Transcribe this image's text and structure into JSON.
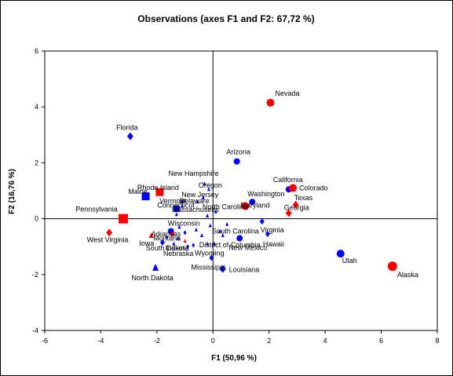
{
  "chart_data": {
    "type": "scatter",
    "title": "Observations (axes F1 and F2: 67,72 %)",
    "xlabel": "F1 (50,96 %)",
    "ylabel": "F2 (16,76 %)",
    "xlim": [
      -6,
      8
    ],
    "ylim": [
      -4,
      6
    ],
    "xticks": [
      "-6",
      "-4",
      "-2",
      "0",
      "2",
      "4",
      "6",
      "8"
    ],
    "yticks": [
      "-4",
      "-2",
      "0",
      "2",
      "4",
      "6"
    ],
    "grid": false,
    "colors": {
      "blue": "#0000ff",
      "red": "#ff0000"
    },
    "points": [
      {
        "label": "Nevada",
        "x": 2.05,
        "y": 4.15,
        "color": "red",
        "shape": "circle",
        "size": 5
      },
      {
        "label": "Florida",
        "x": -2.95,
        "y": 2.95,
        "color": "blue",
        "shape": "diamond",
        "size": 4
      },
      {
        "label": "Arizona",
        "x": 0.85,
        "y": 2.05,
        "color": "blue",
        "shape": "circle",
        "size": 4
      },
      {
        "label": "New Hampshire",
        "x": -0.3,
        "y": 1.25,
        "color": "blue",
        "shape": "triangle",
        "size": 2
      },
      {
        "label": "California",
        "x": 2.7,
        "y": 1.05,
        "color": "blue",
        "shape": "circle",
        "size": 4
      },
      {
        "label": "Colorado",
        "x": 2.85,
        "y": 1.1,
        "color": "red",
        "shape": "circle",
        "size": 5
      },
      {
        "label": "Oregon",
        "x": -0.15,
        "y": 1.05,
        "color": "blue",
        "shape": "triangle",
        "size": 2
      },
      {
        "label": "Rhode Island",
        "x": -1.9,
        "y": 0.95,
        "color": "red",
        "shape": "square",
        "size": 5
      },
      {
        "label": "Maine",
        "x": -2.4,
        "y": 0.8,
        "color": "blue",
        "shape": "square",
        "size": 5
      },
      {
        "label": "New Jersey",
        "x": -0.35,
        "y": 0.75,
        "color": "blue",
        "shape": "triangle",
        "size": 2
      },
      {
        "label": "Washington",
        "x": 1.4,
        "y": 0.6,
        "color": "blue",
        "shape": "circle",
        "size": 4
      },
      {
        "label": "Vermont",
        "x": -1.1,
        "y": 0.6,
        "color": "blue",
        "shape": "diamond",
        "size": 2
      },
      {
        "label": "Delaware",
        "x": -0.55,
        "y": 0.6,
        "color": "blue",
        "shape": "triangle",
        "size": 2
      },
      {
        "label": "Texas",
        "x": 2.95,
        "y": 0.5,
        "color": "red",
        "shape": "diamond",
        "size": 4
      },
      {
        "label": "Maryland",
        "x": 1.15,
        "y": 0.45,
        "color": "red",
        "shape": "circle",
        "size": 5
      },
      {
        "label": "Connecticut",
        "x": -1.1,
        "y": 0.45,
        "color": "blue",
        "shape": "triangle",
        "size": 2
      },
      {
        "label": "Massachusetts",
        "x": -1.3,
        "y": 0.35,
        "color": "blue",
        "shape": "square",
        "size": 4
      },
      {
        "label": "Georgia",
        "x": 2.7,
        "y": 0.2,
        "color": "red",
        "shape": "diamond",
        "size": 4
      },
      {
        "label": "North Carolina",
        "x": 0.1,
        "y": 0.25,
        "color": "blue",
        "shape": "triangle",
        "size": 2
      },
      {
        "label": "Pennsylvania",
        "x": -3.2,
        "y": 0.0,
        "color": "red",
        "shape": "square",
        "size": 6
      },
      {
        "label": "Virginia",
        "x": 1.75,
        "y": -0.1,
        "color": "blue",
        "shape": "diamond",
        "size": 3
      },
      {
        "label": "West Virginia",
        "x": -3.7,
        "y": -0.5,
        "color": "red",
        "shape": "diamond",
        "size": 4
      },
      {
        "label": "Wisconsin",
        "x": -1.5,
        "y": -0.45,
        "color": "blue",
        "shape": "circle",
        "size": 4
      },
      {
        "label": "Arkansas",
        "x": -1.45,
        "y": -0.55,
        "color": "red",
        "shape": "diamond",
        "size": 3
      },
      {
        "label": "Iowa",
        "x": -2.2,
        "y": -0.6,
        "color": "red",
        "shape": "triangle",
        "size": 3
      },
      {
        "label": "Montana",
        "x": -1.25,
        "y": -0.7,
        "color": "blue",
        "shape": "triangle",
        "size": 2
      },
      {
        "label": "South Carolina",
        "x": 0.25,
        "y": -0.45,
        "color": "blue",
        "shape": "triangle",
        "size": 2
      },
      {
        "label": "Hawaii",
        "x": 1.95,
        "y": -0.55,
        "color": "blue",
        "shape": "diamond",
        "size": 3
      },
      {
        "label": "District of Columbia",
        "x": 0.35,
        "y": -0.6,
        "color": "blue",
        "shape": "triangle",
        "size": 2
      },
      {
        "label": "New Mexico",
        "x": 0.95,
        "y": -0.7,
        "color": "blue",
        "shape": "circle",
        "size": 4
      },
      {
        "label": "South Dakota",
        "x": -1.8,
        "y": -0.85,
        "color": "blue",
        "shape": "diamond",
        "size": 3
      },
      {
        "label": "Indiana",
        "x": -1.0,
        "y": -0.8,
        "color": "red",
        "shape": "triangle",
        "size": 2
      },
      {
        "label": "Wyoming",
        "x": -0.2,
        "y": -0.9,
        "color": "blue",
        "shape": "triangle",
        "size": 2
      },
      {
        "label": "Nebraska",
        "x": -0.9,
        "y": -1.0,
        "color": "blue",
        "shape": "diamond",
        "size": 2
      },
      {
        "label": "Mississippi",
        "x": -0.05,
        "y": -1.4,
        "color": "blue",
        "shape": "diamond",
        "size": 3
      },
      {
        "label": "North Dakota",
        "x": -2.05,
        "y": -1.75,
        "color": "blue",
        "shape": "triangle",
        "size": 4
      },
      {
        "label": "Louisiana",
        "x": 0.35,
        "y": -1.8,
        "color": "blue",
        "shape": "diamond",
        "size": 4
      },
      {
        "label": "Utah",
        "x": 4.55,
        "y": -1.25,
        "color": "blue",
        "shape": "circle",
        "size": 5
      },
      {
        "label": "Alaska",
        "x": 6.4,
        "y": -1.7,
        "color": "red",
        "shape": "circle",
        "size": 6
      }
    ],
    "unlabeled_points": [
      {
        "x": -1.3,
        "y": 0.15,
        "color": "blue",
        "shape": "triangle",
        "size": 2
      },
      {
        "x": -0.2,
        "y": 0.1,
        "color": "blue",
        "shape": "triangle",
        "size": 2
      },
      {
        "x": -1.2,
        "y": -0.3,
        "color": "blue",
        "shape": "triangle",
        "size": 2
      },
      {
        "x": -0.6,
        "y": -0.4,
        "color": "blue",
        "shape": "triangle",
        "size": 2
      },
      {
        "x": -0.4,
        "y": -0.6,
        "color": "blue",
        "shape": "triangle",
        "size": 2
      },
      {
        "x": -1.4,
        "y": -0.9,
        "color": "blue",
        "shape": "triangle",
        "size": 2
      },
      {
        "x": -0.7,
        "y": -0.95,
        "color": "blue",
        "shape": "diamond",
        "size": 2
      },
      {
        "x": 0.05,
        "y": -0.9,
        "color": "blue",
        "shape": "triangle",
        "size": 2
      },
      {
        "x": -1.0,
        "y": -0.5,
        "color": "blue",
        "shape": "diamond",
        "size": 2
      },
      {
        "x": -0.1,
        "y": -0.25,
        "color": "blue",
        "shape": "triangle",
        "size": 2
      },
      {
        "x": 0.5,
        "y": -0.2,
        "color": "blue",
        "shape": "triangle",
        "size": 2
      },
      {
        "x": -1.65,
        "y": -0.65,
        "color": "blue",
        "shape": "triangle",
        "size": 2
      }
    ]
  }
}
